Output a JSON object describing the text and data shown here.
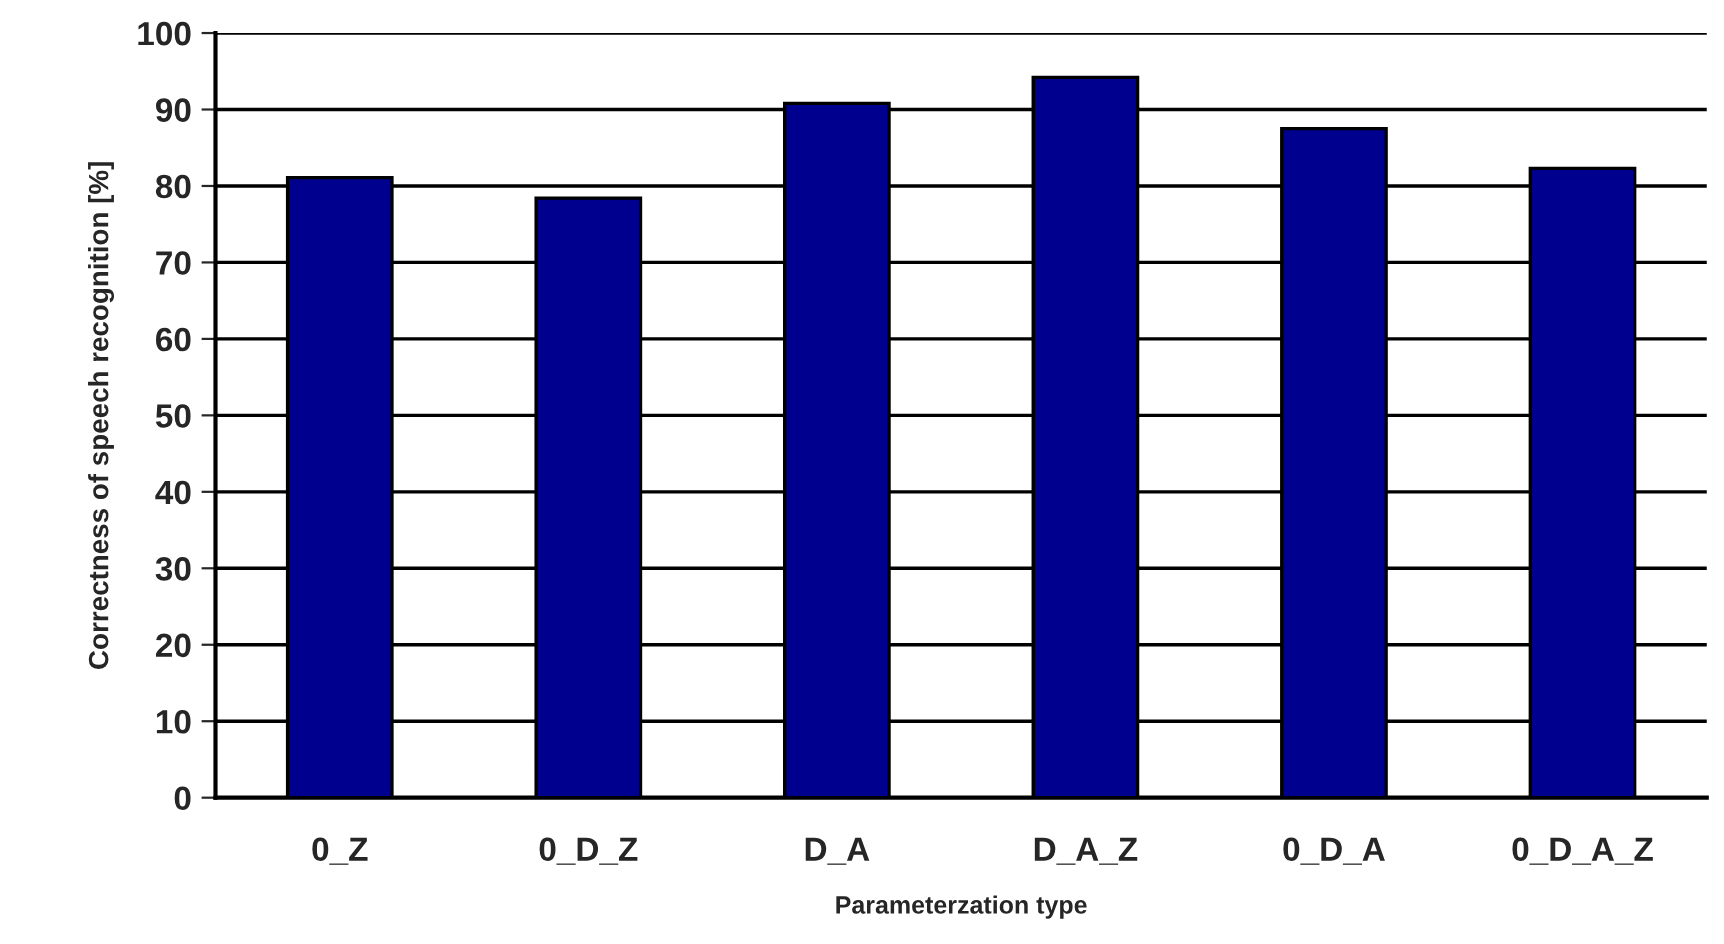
{
  "chart_data": {
    "type": "bar",
    "xlabel": "Parameterzation type",
    "ylabel": "Correctness of speech recognition [%]",
    "categories": [
      "0_Z",
      "0_D_Z",
      "D_A",
      "D_A_Z",
      "0_D_A",
      "0_D_A_Z"
    ],
    "values": [
      81.1,
      78.4,
      90.8,
      94.2,
      87.5,
      82.3
    ],
    "color": "#00008f",
    "ylim": [
      0,
      100
    ],
    "yticks": [
      0,
      10,
      20,
      30,
      40,
      50,
      60,
      70,
      80,
      90,
      100
    ],
    "grid": "y"
  }
}
